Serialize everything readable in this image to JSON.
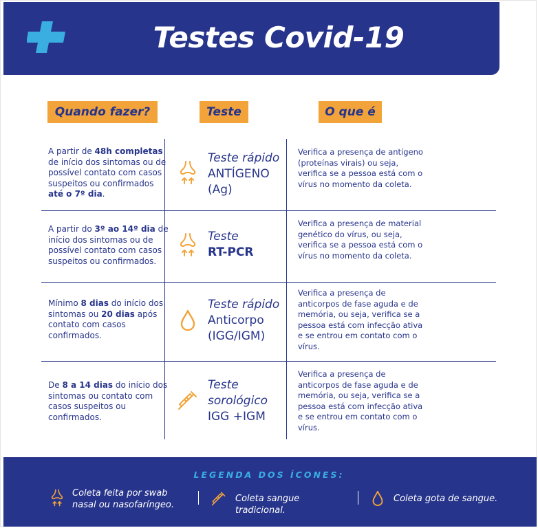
{
  "header": {
    "title": "Testes Covid-19"
  },
  "columns": {
    "when": "Quando fazer?",
    "test": "Teste",
    "what": "O que é"
  },
  "rows": [
    {
      "when_parts": [
        "A partir de ",
        "48h completas",
        " de início dos sintomas ou de possível contato com casos suspeitos ou confirmados ",
        "até o 7º dia",
        "."
      ],
      "test_line1": "Teste rápido",
      "test_line2": "ANTÍGENO",
      "test_line3": "(Ag)",
      "icon": "nose-swab-icon",
      "what": "Verifica a presença de antígeno (proteínas virais) ou seja, verifica se a pessoa está com o vírus no momento da coleta."
    },
    {
      "when_parts": [
        "A partir do ",
        "3º ao 14º dia",
        " de início dos sintomas ou de possível contato com casos suspeitos ou confirmados."
      ],
      "test_line1": "Teste",
      "test_line2": "RT-PCR",
      "icon": "nose-swab-icon",
      "what": "Verifica a presença de material genético do vírus, ou seja, verifica se a pessoa está com o vírus no momento da coleta."
    },
    {
      "when_parts": [
        "Mínimo ",
        "8 dias",
        " do início dos sintomas ou ",
        "20 dias",
        " após contato com casos confirmados."
      ],
      "test_line1": "Teste rápido",
      "test_line2": "Anticorpo",
      "test_line3": "(IGG/IGM)",
      "icon": "blood-drop-icon",
      "what": "Verifica a presença de anticorpos de fase aguda e de memória, ou seja, verifica se a pessoa está com infecção ativa e se entrou em contato com o vírus."
    },
    {
      "when_parts": [
        "De ",
        "8 a 14 dias",
        " do início dos sintomas ou contato com casos suspeitos ou confirmados."
      ],
      "test_line1": "Teste",
      "test_line2": "sorológico",
      "test_line3": "IGG +IGM",
      "icon": "syringe-icon",
      "what": "Verifica a presença de anticorpos de fase aguda e de memória, ou seja, verifica se a pessoa está com infecção ativa e se entrou em contato com o vírus."
    }
  ],
  "legend": {
    "title": "LEGENDA DOS ÍCONES:",
    "items": [
      {
        "icon": "nose-swab-icon",
        "label": "Coleta feita por swab nasal ou nasofaríngeo."
      },
      {
        "icon": "syringe-icon",
        "label": "Coleta sangue tradicional."
      },
      {
        "icon": "blood-drop-icon",
        "label": "Coleta gota de sangue."
      }
    ]
  },
  "colors": {
    "navy": "#27348b",
    "orange": "#f2a43a",
    "cyan": "#3aaee0",
    "white": "#ffffff"
  }
}
